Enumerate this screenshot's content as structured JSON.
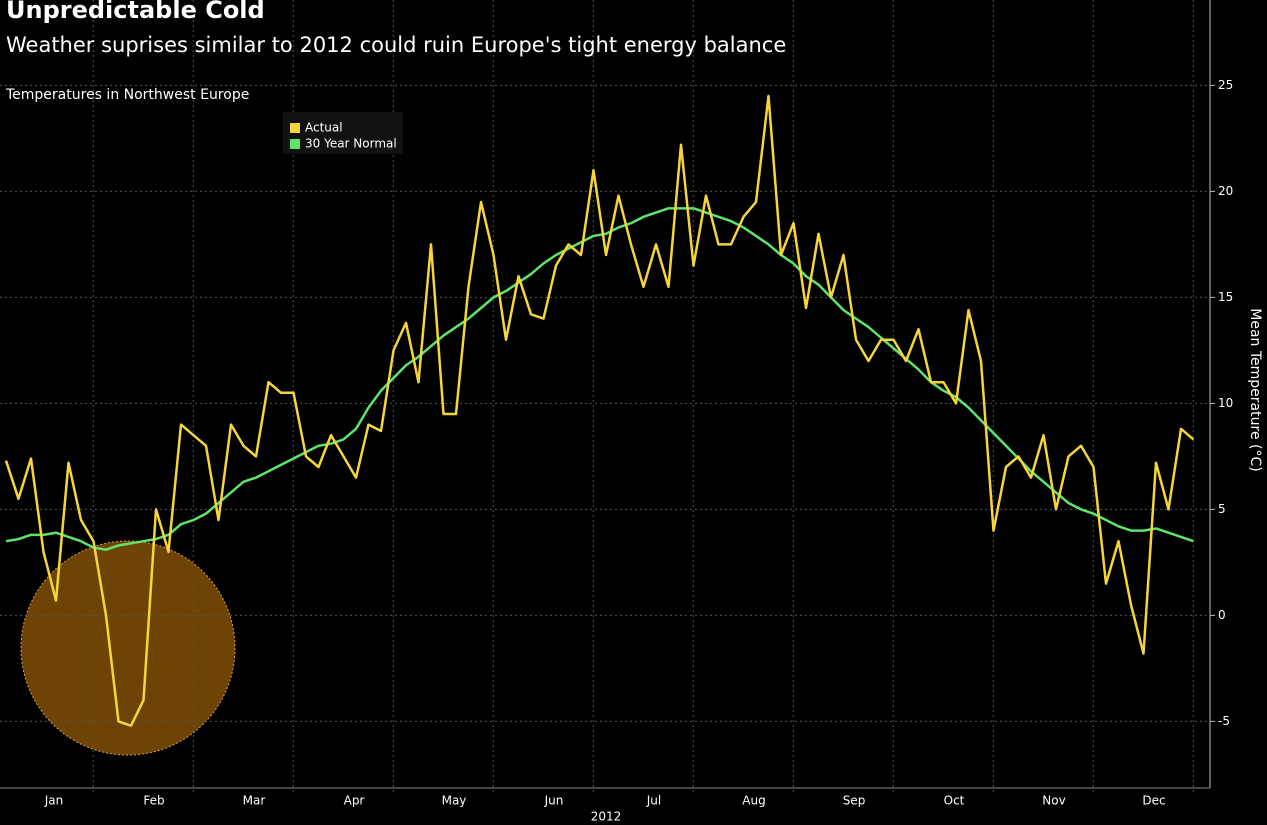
{
  "chart_data": {
    "type": "line",
    "title": "Unpredictable Cold",
    "subtitle": "Weather suprises similar to 2012 could ruin Europe's tight energy balance",
    "annotation": "Temperatures in Northwest Europe",
    "y_label": "Mean Temperature (°C)",
    "x_label": "2012",
    "categories": [
      null,
      null,
      null,
      null,
      "Jan",
      null,
      null,
      null,
      null,
      null,
      null,
      null,
      "Feb",
      null,
      null,
      null,
      null,
      null,
      null,
      null,
      "Mar",
      null,
      null,
      null,
      null,
      null,
      null,
      null,
      "Apr",
      null,
      null,
      null,
      null,
      null,
      null,
      null,
      "May",
      null,
      null,
      null,
      null,
      null,
      null,
      null,
      "Jun",
      null,
      null,
      null,
      null,
      null,
      null,
      null,
      "Jul",
      null,
      null,
      null,
      null,
      null,
      null,
      null,
      "Aug",
      null,
      null,
      null,
      null,
      null,
      null,
      null,
      "Sep",
      null,
      null,
      null,
      null,
      null,
      null,
      null,
      "Oct",
      null,
      null,
      null,
      null,
      null,
      null,
      null,
      "Nov",
      null,
      null,
      null,
      null,
      null,
      null,
      null,
      "Dec",
      null,
      null,
      null
    ],
    "series": [
      {
        "name": "Actual",
        "color": "#f5d53a",
        "values": [
          7.3,
          5.5,
          7.4,
          3,
          0.7,
          7.2,
          4.5,
          3.5,
          0,
          -5,
          -5.2,
          -4,
          5,
          3,
          9,
          8.5,
          8,
          4.5,
          9,
          8,
          7.5,
          11,
          10.5,
          10.5,
          7.5,
          7,
          8.5,
          7.5,
          6.5,
          9,
          8.7,
          12.5,
          13.8,
          11,
          17.5,
          9.5,
          9.5,
          15.5,
          19.5,
          17,
          13,
          16,
          14.2,
          14,
          16.5,
          17.5,
          17,
          21,
          17,
          19.8,
          17.5,
          15.5,
          17.5,
          15.5,
          22.2,
          16.5,
          19.8,
          17.5,
          17.5,
          18.8,
          19.5,
          24.5,
          17,
          18.5,
          14.5,
          18,
          15,
          17,
          13,
          12,
          13,
          13,
          12,
          13.5,
          11,
          11,
          10,
          14.4,
          12,
          4,
          7,
          7.5,
          6.5,
          8.5,
          5,
          7.5,
          8,
          7,
          1.5,
          3.5,
          0.5,
          -1.8,
          7.2,
          5,
          8.8,
          8.3
        ]
      },
      {
        "name": "30 Year Normal",
        "color": "#5ee46a",
        "values": [
          3.5,
          3.6,
          3.8,
          3.8,
          3.9,
          3.7,
          3.5,
          3.2,
          3.1,
          3.3,
          3.4,
          3.5,
          3.6,
          3.8,
          4.3,
          4.5,
          4.8,
          5.3,
          5.8,
          6.3,
          6.5,
          6.8,
          7.1,
          7.4,
          7.7,
          8,
          8.1,
          8.3,
          8.8,
          9.8,
          10.6,
          11.2,
          11.8,
          12.2,
          12.7,
          13.2,
          13.6,
          14,
          14.5,
          15,
          15.3,
          15.7,
          16.1,
          16.6,
          17,
          17.3,
          17.6,
          17.9,
          18,
          18.3,
          18.5,
          18.8,
          19,
          19.2,
          19.2,
          19.2,
          19,
          18.8,
          18.6,
          18.3,
          17.9,
          17.5,
          17,
          16.6,
          16,
          15.6,
          15,
          14.4,
          14,
          13.6,
          13.1,
          12.6,
          12.1,
          11.6,
          11,
          10.6,
          10.3,
          9.8,
          9.2,
          8.6,
          8,
          7.4,
          6.8,
          6.3,
          5.8,
          5.3,
          5,
          4.8,
          4.5,
          4.2,
          4,
          4,
          4.1,
          3.9,
          3.7,
          3.5
        ]
      }
    ],
    "ylim": [
      -8,
      29
    ],
    "yticks": [
      -5,
      0,
      5,
      10,
      15,
      20,
      25
    ],
    "grid": true,
    "legend": "top-left"
  }
}
